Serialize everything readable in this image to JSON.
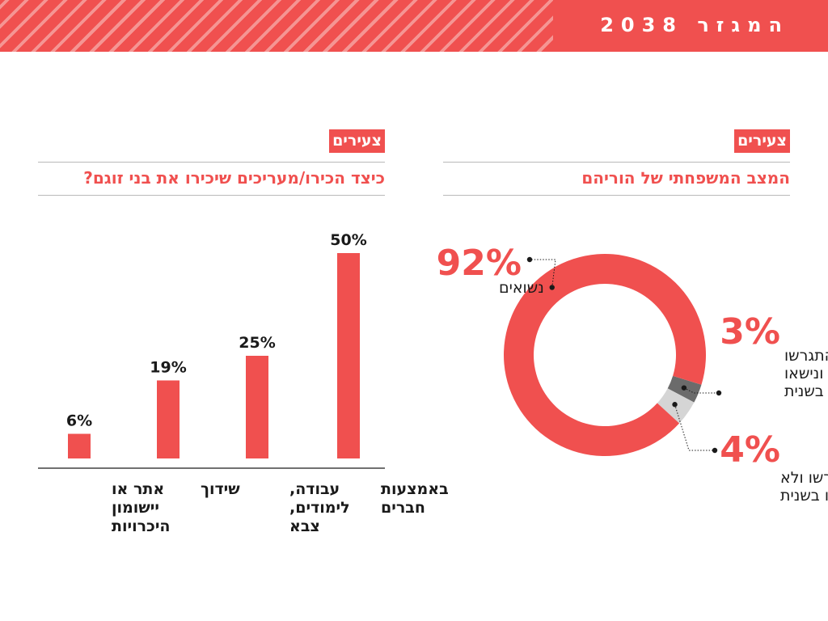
{
  "header": {
    "title": "המגזר 2038"
  },
  "colors": {
    "accent": "#f0504f",
    "dark_gray": "#6b6b6b",
    "light_gray": "#d5d5d5",
    "text": "#1a1a1a"
  },
  "left_panel": {
    "tag": "צעירים",
    "title": "כיצד הכירו/מעריכים שיכירו את בני זוגם?"
  },
  "right_panel": {
    "tag": "צעירים",
    "title": "המצב המשפחתי של הוריהם"
  },
  "chart_data": [
    {
      "type": "bar",
      "title": "כיצד הכירו/מעריכים שיכירו את בני זוגם?",
      "categories": [
        [
          "באמצעות",
          "חברים"
        ],
        [
          "עבודה,",
          "לימודים,",
          "צבא"
        ],
        [
          "שידוך"
        ],
        [
          "אתר או",
          "יישומון",
          "היכרויות"
        ]
      ],
      "values": [
        50,
        25,
        19,
        6
      ],
      "value_labels": [
        "50%",
        "25%",
        "19%",
        "6%"
      ],
      "ylim": [
        0,
        50
      ],
      "color": "#f0504f",
      "grid": false
    },
    {
      "type": "pie",
      "style": "donut",
      "title": "המצב המשפחתי של הוריהם",
      "slices": [
        {
          "label_lines": [
            "נשואים"
          ],
          "value": 92,
          "value_label": "92%",
          "color": "#f0504f"
        },
        {
          "label_lines": [
            "התגרשו",
            "ונישאו",
            "בשנית"
          ],
          "value": 3,
          "value_label": "3%",
          "color": "#6b6b6b"
        },
        {
          "label_lines": [
            "התגרשו ולא",
            "נישאו בשנית"
          ],
          "value": 4,
          "value_label": "4%",
          "color": "#d5d5d5"
        }
      ]
    }
  ]
}
